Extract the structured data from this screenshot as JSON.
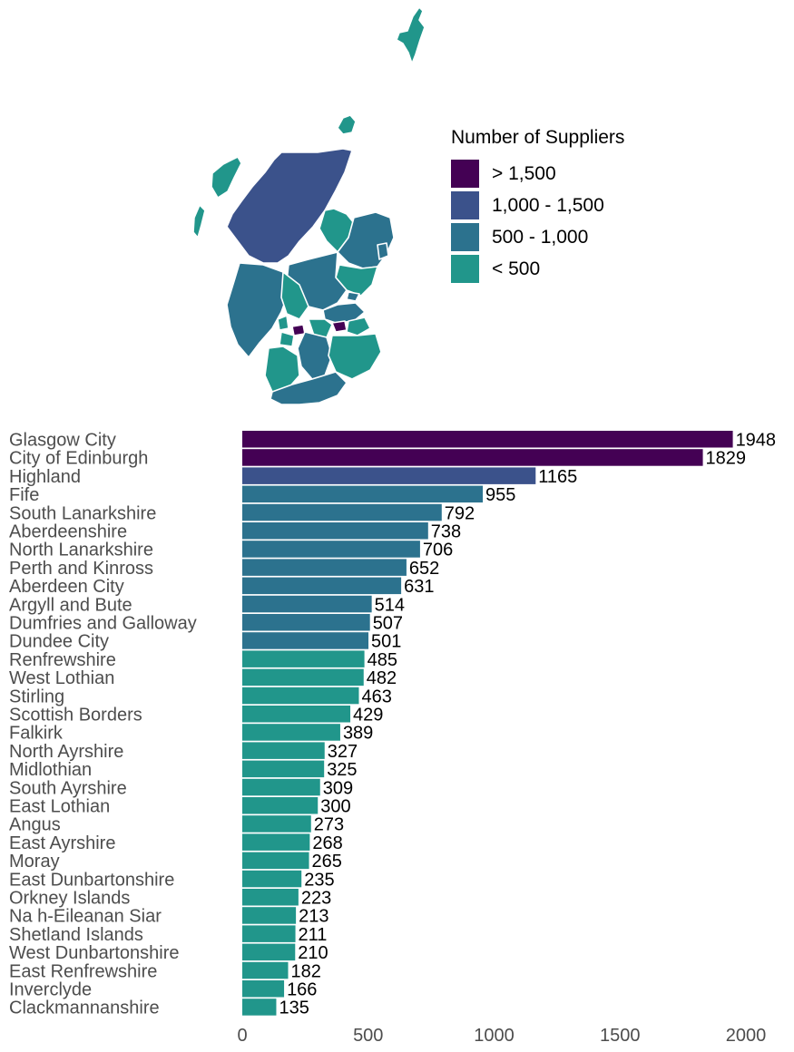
{
  "legend": {
    "title": "Number of Suppliers",
    "items": [
      {
        "label": "> 1,500",
        "color": "#440154"
      },
      {
        "label": "1,000 - 1,500",
        "color": "#3b528b"
      },
      {
        "label": "500 - 1,000",
        "color": "#2c728e"
      },
      {
        "label": "< 500",
        "color": "#21968b"
      }
    ]
  },
  "chart_data": {
    "type": "bar",
    "orientation": "horizontal",
    "categories": [
      "Glasgow City",
      "City of Edinburgh",
      "Highland",
      "Fife",
      "South Lanarkshire",
      "Aberdeenshire",
      "North Lanarkshire",
      "Perth and Kinross",
      "Aberdeen City",
      "Argyll and Bute",
      "Dumfries and Galloway",
      "Dundee City",
      "Renfrewshire",
      "West Lothian",
      "Stirling",
      "Scottish Borders",
      "Falkirk",
      "North Ayrshire",
      "Midlothian",
      "South Ayrshire",
      "East Lothian",
      "Angus",
      "East Ayrshire",
      "Moray",
      "East Dunbartonshire",
      "Orkney Islands",
      "Na h-Eileanan Siar",
      "Shetland Islands",
      "West Dunbartonshire",
      "East Renfrewshire",
      "Inverclyde",
      "Clackmannanshire"
    ],
    "values": [
      1948,
      1829,
      1165,
      955,
      792,
      738,
      706,
      652,
      631,
      514,
      507,
      501,
      485,
      482,
      463,
      429,
      389,
      327,
      325,
      309,
      300,
      273,
      268,
      265,
      235,
      223,
      213,
      211,
      210,
      182,
      166,
      135
    ],
    "xlim": [
      0,
      2000
    ],
    "xticks": [
      0,
      500,
      1000,
      1500,
      2000
    ],
    "grid": false,
    "legend_position": "top-right",
    "color_bins": [
      {
        "min": 1500,
        "color": "#440154"
      },
      {
        "min": 1000,
        "color": "#3b528b"
      },
      {
        "min": 500,
        "color": "#2c728e"
      },
      {
        "min": 0,
        "color": "#21968b"
      }
    ]
  }
}
